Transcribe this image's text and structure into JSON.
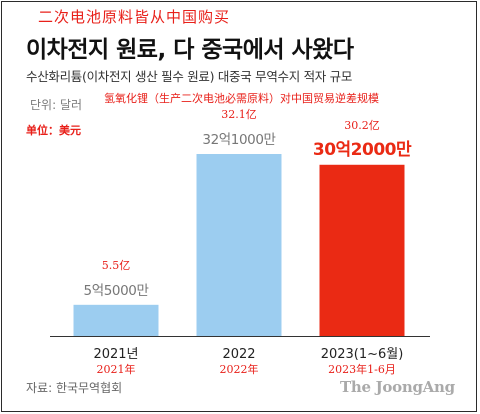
{
  "header": {
    "cn_title": "二次电池原料皆从中国购买",
    "kr_title": "이차전지 원료, 다 중국에서 사왔다",
    "kr_subtitle": "수산화리튬(이차전지 생산 필수 원료) 대중국 무역수지 적자 규모",
    "unit_kr": "단위: 달러",
    "cn_subtitle": "氢氧化锂（生产二次电池必需原料）对中国贸易逆差规模",
    "unit_cn": "单位：美元"
  },
  "footer": {
    "source": "자료: 한국무역협회",
    "brand": "The JoongAng"
  },
  "colors": {
    "bar_normal": "#9ccdf0",
    "bar_highlight": "#ea2a14",
    "cn_annotation": "#e8201a",
    "value_gray": "#777777"
  },
  "chart_data": {
    "type": "bar",
    "title": "이차전지 원료, 다 중국에서 사왔다",
    "subtitle": "수산화리튬(이차전지 생산 필수 원료) 대중국 무역수지 적자 규모",
    "unit": "달러",
    "categories": [
      "2021년",
      "2022",
      "2023(1~6월)"
    ],
    "categories_cn": [
      "2021年",
      "2022年",
      "2023年1-6月"
    ],
    "values": [
      550000000,
      3210000000,
      3020000000
    ],
    "value_labels_kr": [
      "5억5000만",
      "32억1000만",
      "30억2000만"
    ],
    "value_labels_cn": [
      "5.5亿",
      "32.1亿",
      "30.2亿"
    ],
    "highlight_index": 2,
    "ylim": [
      0,
      3210000000
    ],
    "grid": false,
    "legend": "none"
  }
}
